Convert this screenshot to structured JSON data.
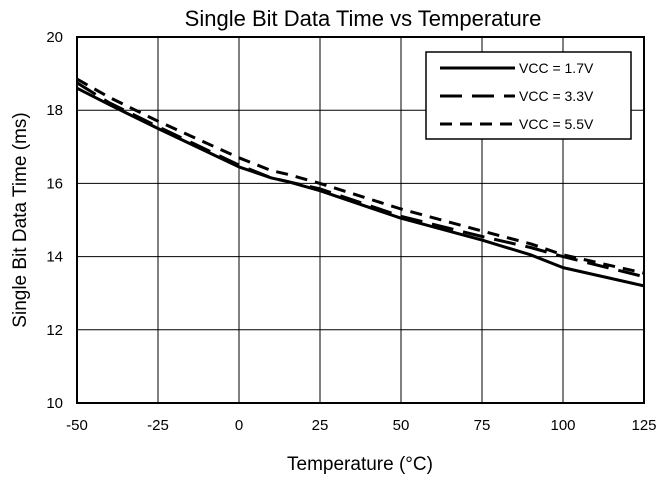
{
  "chart_data": {
    "type": "line",
    "title": "Single Bit Data Time vs Temperature",
    "xlabel": "Temperature (°C)",
    "ylabel": "Single Bit Data Time (ms)",
    "xlim": [
      -50,
      125
    ],
    "ylim": [
      10,
      20
    ],
    "x_ticks": [
      -50,
      -25,
      0,
      25,
      50,
      75,
      100,
      125
    ],
    "y_ticks": [
      10,
      12,
      14,
      16,
      18,
      20
    ],
    "grid": true,
    "legend_position": "top-right",
    "line_color": "#000000",
    "series": [
      {
        "name": "VCC = 1.7V",
        "style": "solid",
        "x": [
          -50,
          -40,
          -25,
          0,
          10,
          15,
          25,
          50,
          75,
          90,
          100,
          125
        ],
        "y": [
          18.6,
          18.15,
          17.5,
          16.45,
          16.15,
          16.05,
          15.8,
          15.05,
          14.45,
          14.05,
          13.7,
          13.2
        ]
      },
      {
        "name": "VCC = 3.3V",
        "style": "long-dash",
        "x": [
          -50,
          -40,
          -25,
          0,
          10,
          15,
          25,
          50,
          75,
          90,
          100,
          125
        ],
        "y": [
          18.75,
          18.2,
          17.55,
          16.5,
          16.15,
          16.05,
          15.85,
          15.1,
          14.55,
          14.25,
          14.0,
          13.45
        ]
      },
      {
        "name": "VCC = 5.5V",
        "style": "short-dash",
        "x": [
          -50,
          -40,
          -25,
          0,
          10,
          15,
          25,
          50,
          75,
          90,
          100,
          125
        ],
        "y": [
          18.85,
          18.35,
          17.7,
          16.7,
          16.35,
          16.25,
          16.0,
          15.3,
          14.7,
          14.35,
          14.05,
          13.55
        ]
      }
    ]
  }
}
